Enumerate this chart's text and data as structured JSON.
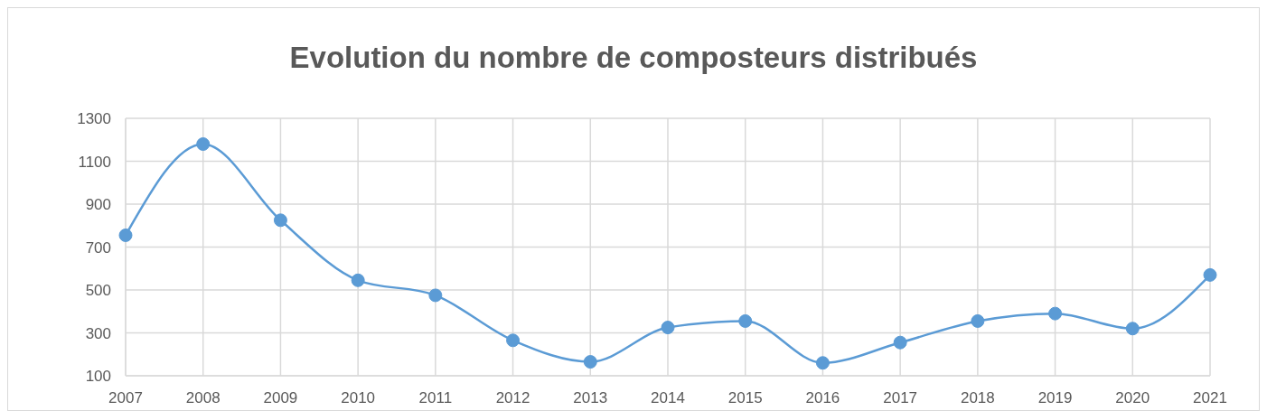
{
  "chart_data": {
    "type": "line",
    "title": "Evolution du nombre de composteurs distribués",
    "categories": [
      "2007",
      "2008",
      "2009",
      "2010",
      "2011",
      "2012",
      "2013",
      "2014",
      "2015",
      "2016",
      "2017",
      "2018",
      "2019",
      "2020",
      "2021"
    ],
    "series": [
      {
        "color": "#5b9bd5",
        "values": [
          755,
          1180,
          825,
          545,
          475,
          265,
          165,
          325,
          355,
          160,
          255,
          355,
          390,
          320,
          570
        ]
      }
    ],
    "ylim": [
      100,
      1300
    ],
    "yticks": [
      100,
      300,
      500,
      700,
      900,
      1100,
      1300
    ],
    "grid": true,
    "marker": "circle"
  }
}
